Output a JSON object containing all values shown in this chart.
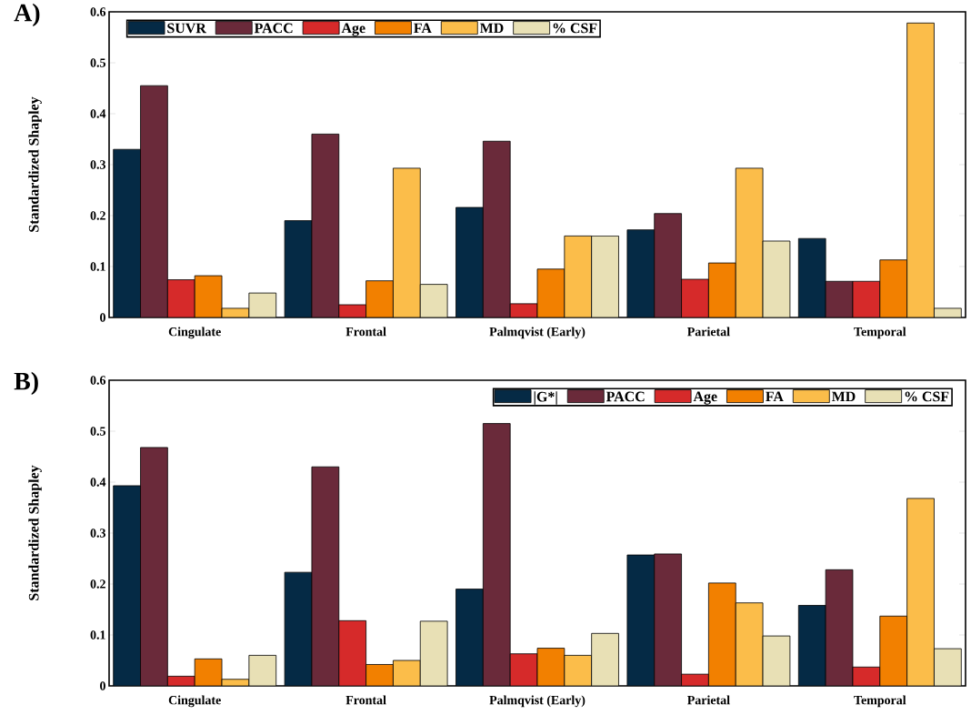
{
  "chart_data": [
    {
      "type": "bar",
      "title": "A)",
      "ylabel": "Standardized Shapley",
      "categories": [
        "Cingulate",
        "Frontal",
        "Palmqvist (Early)",
        "Parietal",
        "Temporal"
      ],
      "ylim": [
        0,
        0.6
      ],
      "yticks": [
        0,
        0.1,
        0.2,
        0.3,
        0.4,
        0.5,
        0.6
      ],
      "legend": "top left",
      "series": [
        {
          "name": "SUVR",
          "color": "#052a45",
          "values": [
            0.33,
            0.19,
            0.216,
            0.172,
            0.155
          ]
        },
        {
          "name": "PACC",
          "color": "#6a2a3a",
          "values": [
            0.455,
            0.36,
            0.346,
            0.204,
            0.071
          ]
        },
        {
          "name": "Age",
          "color": "#d62a2a",
          "values": [
            0.074,
            0.025,
            0.027,
            0.075,
            0.071
          ]
        },
        {
          "name": "FA",
          "color": "#f28000",
          "values": [
            0.082,
            0.072,
            0.095,
            0.107,
            0.113
          ]
        },
        {
          "name": "MD",
          "color": "#fbbd4a",
          "values": [
            0.018,
            0.293,
            0.16,
            0.293,
            0.578
          ]
        },
        {
          "name": "% CSF",
          "color": "#e8e0b5",
          "values": [
            0.048,
            0.065,
            0.16,
            0.15,
            0.018
          ]
        }
      ]
    },
    {
      "type": "bar",
      "title": "B)",
      "ylabel": "Standardized Shapley",
      "categories": [
        "Cingulate",
        "Frontal",
        "Palmqvist (Early)",
        "Parietal",
        "Temporal"
      ],
      "ylim": [
        0,
        0.6
      ],
      "yticks": [
        0,
        0.1,
        0.2,
        0.3,
        0.4,
        0.5,
        0.6
      ],
      "legend": "top right",
      "series": [
        {
          "name": "|G*|",
          "color": "#052a45",
          "values": [
            0.393,
            0.223,
            0.19,
            0.257,
            0.158
          ]
        },
        {
          "name": "PACC",
          "color": "#6a2a3a",
          "values": [
            0.468,
            0.43,
            0.515,
            0.259,
            0.228
          ]
        },
        {
          "name": "Age",
          "color": "#d62a2a",
          "values": [
            0.019,
            0.128,
            0.063,
            0.023,
            0.037
          ]
        },
        {
          "name": "FA",
          "color": "#f28000",
          "values": [
            0.053,
            0.042,
            0.074,
            0.202,
            0.137
          ]
        },
        {
          "name": "MD",
          "color": "#fbbd4a",
          "values": [
            0.013,
            0.05,
            0.06,
            0.163,
            0.368
          ]
        },
        {
          "name": "% CSF",
          "color": "#e8e0b5",
          "values": [
            0.06,
            0.127,
            0.103,
            0.098,
            0.073
          ]
        }
      ]
    }
  ]
}
